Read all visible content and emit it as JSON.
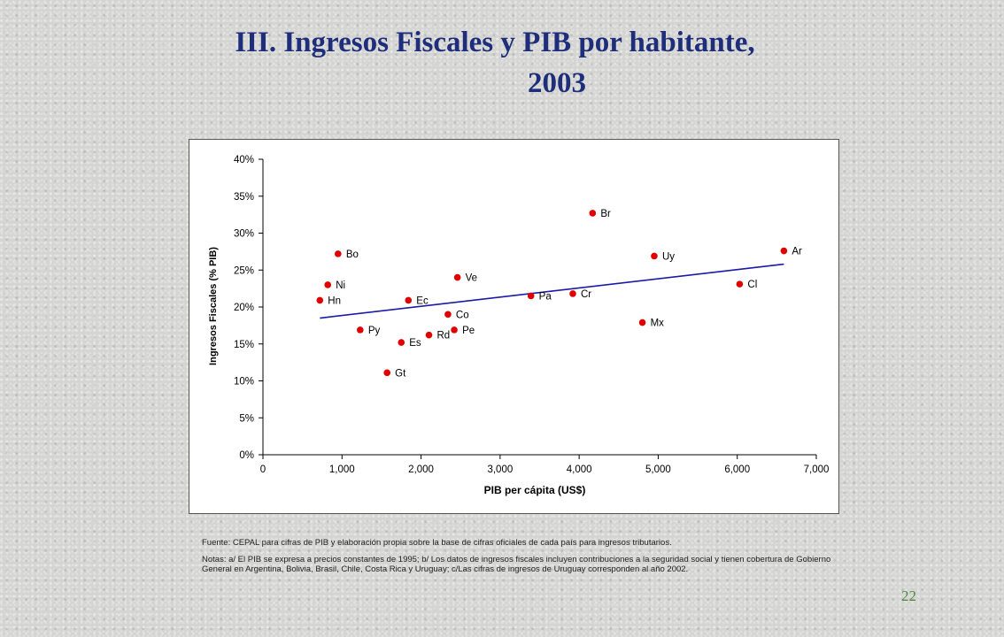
{
  "title_line1": "III. Ingresos Fiscales y PIB por habitante,",
  "title_line2": "2003",
  "source_note": "Fuente: CEPAL para cifras de PIB y elaboración propia sobre la base de cifras oficiales de cada país para ingresos tributarios.",
  "notes_text": "Notas: a/ El PIB se expresa a precios constantes de 1995; b/ Los datos de ingresos fiscales incluyen contribuciones a la seguridad social y tienen cobertura de Gobierno General en Argentina, Bolivia, Brasil, Chile, Costa Rica y Uruguay; c/Las cifras de ingresos de Uruguay corresponden al año 2002.",
  "page_number": "22",
  "colors": {
    "title": "#1f2e7a",
    "points": "#e00000",
    "trend": "#1a1aa8",
    "page_number": "#4a8a3a"
  },
  "chart_data": {
    "type": "scatter",
    "xlabel": "PIB per cápita (US$)",
    "ylabel": "Ingresos Fiscales (% PIB)",
    "xlim": [
      0,
      7000
    ],
    "ylim": [
      0,
      40
    ],
    "x_ticks": [
      0,
      1000,
      2000,
      3000,
      4000,
      5000,
      6000,
      7000
    ],
    "x_tick_labels": [
      "0",
      "1,000",
      "2,000",
      "3,000",
      "4,000",
      "5,000",
      "6,000",
      "7,000"
    ],
    "y_ticks": [
      0,
      5,
      10,
      15,
      20,
      25,
      30,
      35,
      40
    ],
    "y_tick_labels": [
      "0%",
      "5%",
      "10%",
      "15%",
      "20%",
      "25%",
      "30%",
      "35%",
      "40%"
    ],
    "grid": false,
    "points": [
      {
        "label": "Bo",
        "x": 950,
        "y": 27.2
      },
      {
        "label": "Ni",
        "x": 820,
        "y": 23.0
      },
      {
        "label": "Hn",
        "x": 720,
        "y": 20.9
      },
      {
        "label": "Py",
        "x": 1230,
        "y": 16.9
      },
      {
        "label": "Gt",
        "x": 1570,
        "y": 11.1
      },
      {
        "label": "Es",
        "x": 1750,
        "y": 15.2
      },
      {
        "label": "Ec",
        "x": 1840,
        "y": 20.9
      },
      {
        "label": "Rd",
        "x": 2100,
        "y": 16.2
      },
      {
        "label": "Co",
        "x": 2340,
        "y": 19.0
      },
      {
        "label": "Pe",
        "x": 2420,
        "y": 16.9
      },
      {
        "label": "Ve",
        "x": 2460,
        "y": 24.0
      },
      {
        "label": "Pa",
        "x": 3390,
        "y": 21.5
      },
      {
        "label": "Cr",
        "x": 3920,
        "y": 21.8
      },
      {
        "label": "Br",
        "x": 4170,
        "y": 32.7
      },
      {
        "label": "Mx",
        "x": 4800,
        "y": 17.9
      },
      {
        "label": "Uy",
        "x": 4950,
        "y": 26.9
      },
      {
        "label": "Cl",
        "x": 6030,
        "y": 23.1
      },
      {
        "label": "Ar",
        "x": 6590,
        "y": 27.6
      }
    ],
    "trendline": {
      "x": [
        720,
        6590
      ],
      "y": [
        18.5,
        25.8
      ]
    }
  }
}
